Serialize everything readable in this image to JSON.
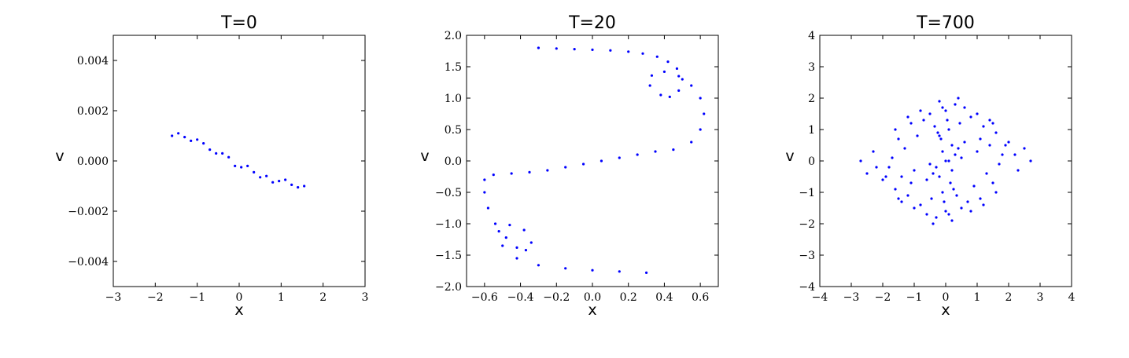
{
  "chart_data": [
    {
      "type": "scatter",
      "title": "T=0",
      "xlabel": "x",
      "ylabel": "v",
      "xlim": [
        -3,
        3
      ],
      "ylim": [
        -0.005,
        0.005
      ],
      "xticks": [
        -3,
        -2,
        -1,
        0,
        1,
        2,
        3
      ],
      "xtick_labels": [
        "−3",
        "−2",
        "−1",
        "0",
        "1",
        "2",
        "3"
      ],
      "yticks": [
        -0.004,
        -0.002,
        0.0,
        0.002,
        0.004
      ],
      "ytick_labels": [
        "−0.004",
        "−0.002",
        "0.000",
        "0.002",
        "0.004"
      ],
      "color": "#0000ff",
      "grid": false,
      "series": [
        {
          "x": [
            -1.6,
            -1.45,
            -1.3,
            -1.15,
            -1.0,
            -0.85,
            -0.7,
            -0.55,
            -0.4,
            -0.25,
            -0.1,
            0.05,
            0.2,
            0.35,
            0.5,
            0.65,
            0.8,
            0.95,
            1.1,
            1.25,
            1.4,
            1.55
          ],
          "y": [
            0.001,
            0.0011,
            0.00095,
            0.0008,
            0.00085,
            0.0007,
            0.00045,
            0.0003,
            0.0003,
            0.00015,
            -0.0002,
            -0.00025,
            -0.0002,
            -0.00045,
            -0.00065,
            -0.0006,
            -0.00085,
            -0.0008,
            -0.00075,
            -0.00095,
            -0.00105,
            -0.001
          ]
        }
      ]
    },
    {
      "type": "scatter",
      "title": "T=20",
      "xlabel": "x",
      "ylabel": "v",
      "xlim": [
        -0.7,
        0.7
      ],
      "ylim": [
        -2.0,
        2.0
      ],
      "xticks": [
        -0.6,
        -0.4,
        -0.2,
        0.0,
        0.2,
        0.4,
        0.6
      ],
      "xtick_labels": [
        "−0.6",
        "−0.4",
        "−0.2",
        "0.0",
        "0.2",
        "0.4",
        "0.6"
      ],
      "yticks": [
        -2.0,
        -1.5,
        -1.0,
        -0.5,
        0.0,
        0.5,
        1.0,
        1.5,
        2.0
      ],
      "ytick_labels": [
        "−2.0",
        "−1.5",
        "−1.0",
        "−0.5",
        "0.0",
        "0.5",
        "1.0",
        "1.5",
        "2.0"
      ],
      "color": "#0000ff",
      "grid": false,
      "series": [
        {
          "x": [
            -0.3,
            -0.2,
            -0.1,
            0.0,
            0.1,
            0.2,
            0.28,
            0.36,
            0.42,
            0.47,
            0.5,
            0.48,
            0.43,
            0.38,
            0.32,
            0.33,
            0.4,
            0.48,
            0.55,
            0.6,
            0.62,
            0.6,
            0.55,
            0.45,
            0.35,
            0.25,
            0.15,
            0.05,
            -0.05,
            -0.15,
            -0.25,
            -0.35,
            -0.45,
            -0.55,
            -0.6,
            -0.6,
            -0.58,
            -0.54,
            -0.48,
            -0.42,
            -0.37,
            -0.34,
            -0.38,
            -0.46,
            -0.52,
            -0.5,
            -0.42,
            -0.3,
            -0.15,
            0.0,
            0.15,
            0.3
          ],
          "y": [
            1.8,
            1.79,
            1.78,
            1.77,
            1.76,
            1.74,
            1.71,
            1.66,
            1.58,
            1.47,
            1.3,
            1.12,
            1.02,
            1.05,
            1.2,
            1.36,
            1.42,
            1.35,
            1.2,
            1.0,
            0.75,
            0.5,
            0.3,
            0.18,
            0.15,
            0.1,
            0.05,
            0.0,
            -0.05,
            -0.1,
            -0.15,
            -0.18,
            -0.2,
            -0.22,
            -0.3,
            -0.5,
            -0.75,
            -1.0,
            -1.22,
            -1.38,
            -1.42,
            -1.3,
            -1.1,
            -1.02,
            -1.12,
            -1.35,
            -1.55,
            -1.66,
            -1.71,
            -1.74,
            -1.76,
            -1.78
          ]
        }
      ]
    },
    {
      "type": "scatter",
      "title": "T=700",
      "xlabel": "x",
      "ylabel": "v",
      "xlim": [
        -4,
        4
      ],
      "ylim": [
        -4,
        4
      ],
      "xticks": [
        -4,
        -3,
        -2,
        -1,
        0,
        1,
        2,
        3,
        4
      ],
      "xtick_labels": [
        "−4",
        "−3",
        "−2",
        "−1",
        "0",
        "1",
        "2",
        "3",
        "4"
      ],
      "yticks": [
        -4,
        -3,
        -2,
        -1,
        0,
        1,
        2,
        3,
        4
      ],
      "ytick_labels": [
        "−4",
        "−3",
        "−2",
        "−1",
        "0",
        "1",
        "2",
        "3",
        "4"
      ],
      "color": "#0000ff",
      "grid": false,
      "series": [
        {
          "x": [
            0,
            0.2,
            -0.2,
            0.1,
            -0.1,
            0.3,
            -0.3,
            0.15,
            -0.15,
            0.05,
            -0.05,
            0.25,
            -0.25,
            0.4,
            -0.4,
            0.35,
            -0.35,
            0.1,
            -0.1,
            0.2,
            -0.2,
            0.0,
            0.0,
            0.45,
            -0.45,
            0.6,
            -0.6,
            0.8,
            -0.8,
            1.0,
            -1.0,
            1.2,
            -1.2,
            1.4,
            -1.4,
            1.6,
            -1.6,
            1.8,
            -1.8,
            0.5,
            -0.5,
            0.7,
            -0.7,
            0.9,
            -0.9,
            1.1,
            -1.1,
            1.3,
            -1.3,
            1.5,
            -1.5,
            1.7,
            -1.7,
            0.3,
            -0.3,
            0.6,
            -0.6,
            1.0,
            -1.0,
            1.4,
            -1.4,
            2.0,
            -2.0,
            2.2,
            -2.2,
            2.5,
            -2.5,
            2.7,
            -2.7,
            0.2,
            -0.2,
            0.8,
            -0.8,
            1.6,
            -1.6,
            1.9,
            -1.9,
            0.4,
            -0.4,
            1.2,
            -1.2,
            2.3,
            -2.3,
            0.1,
            -0.1,
            0.5,
            -0.5,
            1.1,
            -1.1,
            1.5,
            -1.5
          ],
          "y": [
            0,
            0.5,
            -0.5,
            1.0,
            -1.0,
            0.2,
            -0.2,
            -0.7,
            0.7,
            1.3,
            -1.3,
            -0.9,
            0.9,
            0.4,
            -0.4,
            -1.1,
            1.1,
            0.0,
            0.3,
            -0.3,
            0.8,
            1.6,
            -1.6,
            1.2,
            -1.2,
            0.6,
            -0.6,
            1.4,
            -1.4,
            0.3,
            -0.3,
            1.1,
            -1.1,
            0.5,
            -0.5,
            0.9,
            -0.9,
            0.2,
            -0.2,
            -1.5,
            1.5,
            -1.3,
            1.3,
            -0.8,
            0.8,
            -1.2,
            1.2,
            -0.4,
            0.4,
            -0.7,
            0.7,
            -0.1,
            0.1,
            1.8,
            -1.8,
            1.7,
            -1.7,
            1.5,
            -1.5,
            1.3,
            -1.3,
            0.6,
            -0.6,
            0.2,
            -0.2,
            0.4,
            -0.4,
            0.0,
            0.0,
            -1.9,
            1.9,
            -1.6,
            1.6,
            -1.0,
            1.0,
            0.5,
            -0.5,
            2.0,
            -2.0,
            -1.4,
            1.4,
            -0.3,
            0.3,
            -1.7,
            1.7,
            0.1,
            -0.1,
            0.7,
            -0.7,
            1.2,
            -1.2
          ]
        }
      ]
    }
  ]
}
